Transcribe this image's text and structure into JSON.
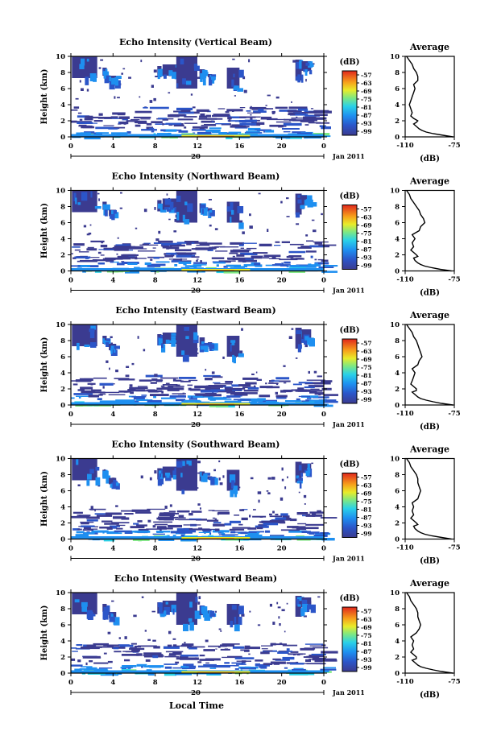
{
  "chart_data": {
    "type": "heatmap",
    "date_label": "Jan 2011",
    "day_label": "20",
    "x_title": "Local Time",
    "x_ticks": [
      "0",
      "4",
      "8",
      "12",
      "16",
      "20",
      "0"
    ],
    "y_ticks": [
      "0",
      "2",
      "4",
      "6",
      "8",
      "10"
    ],
    "ylabel": "Height (km)",
    "ylim": [
      0,
      10
    ],
    "xlim": [
      0,
      24
    ],
    "colorbar": {
      "unit": "(dB)",
      "ticks": [
        "-57",
        "-63",
        "-69",
        "-75",
        "-81",
        "-87",
        "-93",
        "-99"
      ],
      "range": [
        -102,
        -54
      ]
    },
    "average": {
      "title": "Average",
      "xlabel": "(dB)",
      "x_ticks": [
        "-110",
        "-75"
      ],
      "xlim": [
        -110,
        -75
      ],
      "ylim": [
        0,
        10
      ],
      "y_ticks": [
        "0",
        "2",
        "4",
        "6",
        "8",
        "10"
      ]
    },
    "panels": [
      {
        "title": "Echo Intensity (Vertical Beam)",
        "profile": {
          "height": [
            0,
            0.2,
            0.4,
            0.6,
            0.8,
            1.0,
            1.3,
            1.6,
            1.8,
            2.0,
            2.3,
            2.6,
            3.0,
            3.5,
            4.0,
            4.5,
            5.0,
            5.5,
            6.0,
            6.5,
            7.0,
            7.5,
            8.0,
            8.5,
            9.0,
            9.5,
            10
          ],
          "db": [
            -76,
            -83,
            -90,
            -95,
            -98,
            -100,
            -102,
            -104,
            -102,
            -101,
            -104,
            -106,
            -105,
            -106,
            -107,
            -106,
            -105,
            -104,
            -103,
            -104,
            -101,
            -101,
            -102,
            -104,
            -105,
            -107,
            -109
          ]
        }
      },
      {
        "title": "Echo Intensity (Northward Beam)",
        "profile": {
          "height": [
            0,
            0.2,
            0.4,
            0.6,
            0.8,
            1.0,
            1.3,
            1.6,
            1.8,
            2.0,
            2.3,
            2.6,
            3.0,
            3.5,
            4.0,
            4.5,
            5.0,
            5.5,
            6.0,
            6.5,
            7.0,
            7.5,
            8.0,
            8.5,
            9.0,
            9.5,
            10
          ],
          "db": [
            -77,
            -85,
            -91,
            -96,
            -99,
            -101,
            -103,
            -104,
            -101,
            -102,
            -104,
            -106,
            -104,
            -105,
            -103,
            -105,
            -100,
            -99,
            -96,
            -97,
            -99,
            -100,
            -102,
            -104,
            -106,
            -107,
            -109
          ]
        }
      },
      {
        "title": "Echo Intensity (Eastward Beam)",
        "profile": {
          "height": [
            0,
            0.2,
            0.4,
            0.6,
            0.8,
            1.0,
            1.3,
            1.6,
            1.8,
            2.0,
            2.3,
            2.6,
            3.0,
            3.5,
            4.0,
            4.5,
            5.0,
            5.5,
            6.0,
            6.5,
            7.0,
            7.5,
            8.0,
            8.5,
            9.0,
            9.5,
            10
          ],
          "db": [
            -76,
            -84,
            -90,
            -95,
            -99,
            -101,
            -103,
            -105,
            -102,
            -102,
            -104,
            -106,
            -105,
            -104,
            -103,
            -105,
            -101,
            -100,
            -98,
            -99,
            -100,
            -101,
            -102,
            -104,
            -105,
            -107,
            -109
          ]
        }
      },
      {
        "title": "Echo Intensity (Southward Beam)",
        "profile": {
          "height": [
            0,
            0.2,
            0.4,
            0.6,
            0.8,
            1.0,
            1.3,
            1.6,
            1.8,
            2.0,
            2.3,
            2.6,
            3.0,
            3.5,
            4.0,
            4.5,
            5.0,
            5.5,
            6.0,
            6.5,
            7.0,
            7.5,
            8.0,
            8.5,
            9.0,
            9.5,
            10
          ],
          "db": [
            -77,
            -84,
            -91,
            -96,
            -99,
            -101,
            -103,
            -104,
            -101,
            -102,
            -104,
            -106,
            -104,
            -105,
            -104,
            -105,
            -101,
            -100,
            -99,
            -100,
            -101,
            -101,
            -102,
            -104,
            -106,
            -107,
            -109
          ]
        }
      },
      {
        "title": "Echo Intensity (Westward Beam)",
        "profile": {
          "height": [
            0,
            0.2,
            0.4,
            0.6,
            0.8,
            1.0,
            1.3,
            1.6,
            1.8,
            2.0,
            2.3,
            2.6,
            3.0,
            3.5,
            4.0,
            4.5,
            5.0,
            5.5,
            6.0,
            6.5,
            7.0,
            7.5,
            8.0,
            8.5,
            9.0,
            9.5,
            10
          ],
          "db": [
            -76,
            -84,
            -90,
            -95,
            -99,
            -101,
            -103,
            -105,
            -102,
            -102,
            -104,
            -106,
            -104,
            -105,
            -104,
            -106,
            -102,
            -100,
            -99,
            -100,
            -101,
            -101,
            -102,
            -104,
            -106,
            -107,
            -109
          ]
        }
      }
    ]
  }
}
